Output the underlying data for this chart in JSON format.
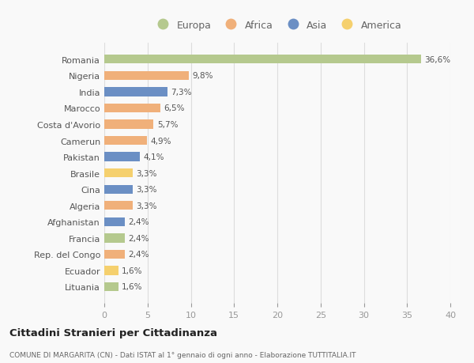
{
  "countries": [
    "Romania",
    "Nigeria",
    "India",
    "Marocco",
    "Costa d'Avorio",
    "Camerun",
    "Pakistan",
    "Brasile",
    "Cina",
    "Algeria",
    "Afghanistan",
    "Francia",
    "Rep. del Congo",
    "Ecuador",
    "Lituania"
  ],
  "values": [
    36.6,
    9.8,
    7.3,
    6.5,
    5.7,
    4.9,
    4.1,
    3.3,
    3.3,
    3.3,
    2.4,
    2.4,
    2.4,
    1.6,
    1.6
  ],
  "labels": [
    "36,6%",
    "9,8%",
    "7,3%",
    "6,5%",
    "5,7%",
    "4,9%",
    "4,1%",
    "3,3%",
    "3,3%",
    "3,3%",
    "2,4%",
    "2,4%",
    "2,4%",
    "1,6%",
    "1,6%"
  ],
  "colors": [
    "#b5c98e",
    "#f0b07a",
    "#6b8fc4",
    "#f0b07a",
    "#f0b07a",
    "#f0b07a",
    "#6b8fc4",
    "#f5d06e",
    "#6b8fc4",
    "#f0b07a",
    "#6b8fc4",
    "#b5c98e",
    "#f0b07a",
    "#f5d06e",
    "#b5c98e"
  ],
  "continent_colors": {
    "Europa": "#b5c98e",
    "Africa": "#f0b07a",
    "Asia": "#6b8fc4",
    "America": "#f5d06e"
  },
  "xlim": [
    0,
    40
  ],
  "xticks": [
    0,
    5,
    10,
    15,
    20,
    25,
    30,
    35,
    40
  ],
  "title": "Cittadini Stranieri per Cittadinanza",
  "subtitle": "COMUNE DI MARGARITA (CN) - Dati ISTAT al 1° gennaio di ogni anno - Elaborazione TUTTITALIA.IT",
  "bg_color": "#f9f9f9",
  "grid_color": "#dddddd",
  "bar_height": 0.55,
  "label_fontsize": 7.5,
  "ytick_fontsize": 8.0,
  "xtick_fontsize": 8.0
}
